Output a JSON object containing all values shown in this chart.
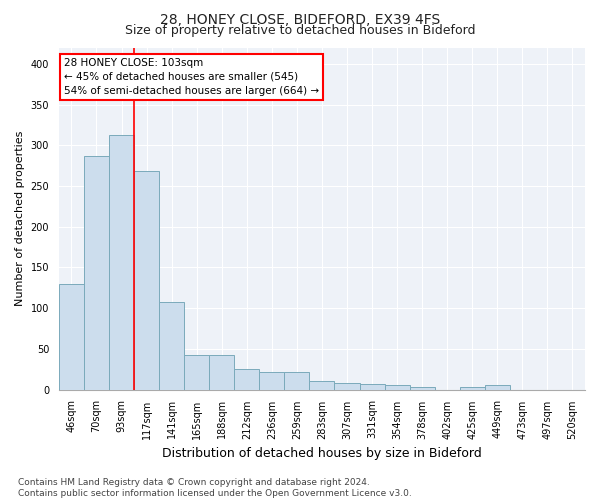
{
  "title1": "28, HONEY CLOSE, BIDEFORD, EX39 4FS",
  "title2": "Size of property relative to detached houses in Bideford",
  "xlabel": "Distribution of detached houses by size in Bideford",
  "ylabel": "Number of detached properties",
  "categories": [
    "46sqm",
    "70sqm",
    "93sqm",
    "117sqm",
    "141sqm",
    "165sqm",
    "188sqm",
    "212sqm",
    "236sqm",
    "259sqm",
    "283sqm",
    "307sqm",
    "331sqm",
    "354sqm",
    "378sqm",
    "402sqm",
    "425sqm",
    "449sqm",
    "473sqm",
    "497sqm",
    "520sqm"
  ],
  "values": [
    130,
    287,
    313,
    268,
    107,
    42,
    42,
    25,
    21,
    21,
    10,
    8,
    7,
    6,
    3,
    0,
    3,
    5,
    0,
    0,
    0
  ],
  "bar_color": "#ccdded",
  "bar_edge_color": "#7aaabb",
  "vline_x": 2.5,
  "vline_color": "red",
  "annotation_text": "28 HONEY CLOSE: 103sqm\n← 45% of detached houses are smaller (545)\n54% of semi-detached houses are larger (664) →",
  "annotation_box_color": "white",
  "annotation_box_edge_color": "red",
  "ylim": [
    0,
    420
  ],
  "yticks": [
    0,
    50,
    100,
    150,
    200,
    250,
    300,
    350,
    400
  ],
  "footer": "Contains HM Land Registry data © Crown copyright and database right 2024.\nContains public sector information licensed under the Open Government Licence v3.0.",
  "background_color": "#eef2f8",
  "title1_fontsize": 10,
  "title2_fontsize": 9,
  "xlabel_fontsize": 9,
  "ylabel_fontsize": 8,
  "tick_fontsize": 7,
  "footer_fontsize": 6.5,
  "annot_fontsize": 7.5
}
